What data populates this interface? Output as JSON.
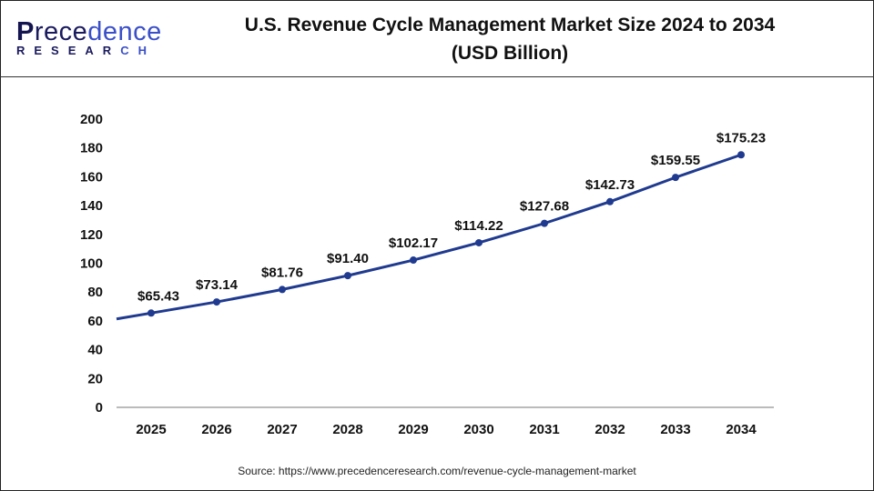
{
  "brand": {
    "logo_main": "Precedence",
    "logo_sub": "RESEARCH"
  },
  "header": {
    "title_line1": "U.S. Revenue Cycle Management Market Size 2024 to 2034",
    "title_line2": "(USD Billion)"
  },
  "source": "Source: https://www.precedenceresearch.com/revenue-cycle-management-market",
  "colors": {
    "line": "#1f3a8f",
    "axis": "#bbbbbb",
    "brand": "#3a4fc8"
  },
  "chart_data": {
    "type": "line",
    "title": "U.S. Revenue Cycle Management Market Size 2024 to 2034 (USD Billion)",
    "categories": [
      "2025",
      "2026",
      "2027",
      "2028",
      "2029",
      "2030",
      "2031",
      "2032",
      "2033",
      "2034"
    ],
    "values": [
      65.43,
      73.14,
      81.76,
      91.4,
      102.17,
      114.22,
      127.68,
      142.73,
      159.55,
      175.23
    ],
    "data_labels": [
      "$65.43",
      "$73.14",
      "$81.76",
      "$91.40",
      "$102.17",
      "$114.22",
      "$127.68",
      "$142.73",
      "$159.55",
      "$175.23"
    ],
    "yticks": [
      "0",
      "20",
      "40",
      "60",
      "80",
      "100",
      "120",
      "140",
      "160",
      "180",
      "200"
    ],
    "ylim": [
      0,
      200
    ],
    "grid": false,
    "legend": "none"
  }
}
